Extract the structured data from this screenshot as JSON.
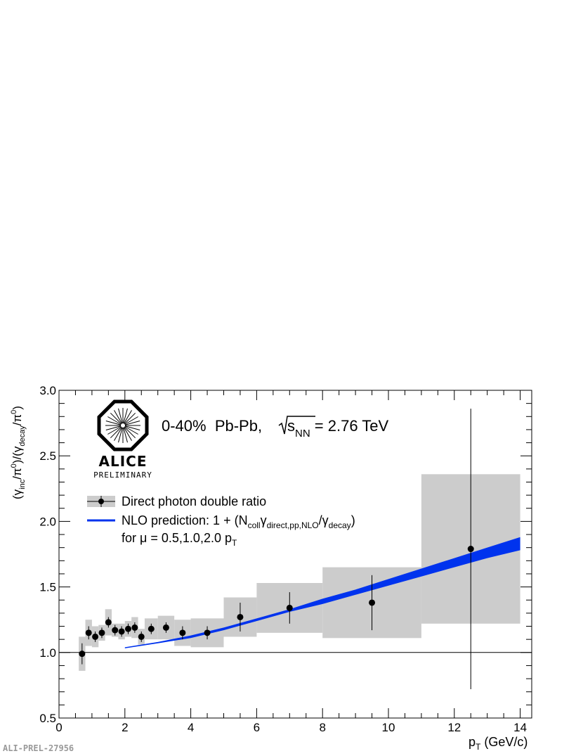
{
  "tag": "ALI-PREL-27956",
  "logo": {
    "text": "ALICE",
    "subtext": "PRELIMINARY"
  },
  "title": {
    "main": "0-40%  Pb-Pb, ",
    "s_sym": "s",
    "s_sub": "NN",
    "value": " = 2.76 TeV"
  },
  "legend": {
    "data_label": "Direct photon double ratio",
    "nlo_prefix": "NLO prediction: 1 + (N",
    "nlo_sub1": "coll",
    "nlo_gamma": "γ",
    "nlo_sub2": "direct,pp,NLO",
    "nlo_mid": "/γ",
    "nlo_sub3": "decay",
    "nlo_suffix": ")",
    "mu_text": "for μ = 0.5,1.0,2.0 p",
    "mu_sub": "T"
  },
  "axis": {
    "x_label_main": "p",
    "x_label_sub": "T",
    "x_label_rest": " (GeV/c)",
    "y_label": "(γinc/π0)/(γdecay/π0)"
  },
  "colors": {
    "band": "#0033ee",
    "sys": "#cccccc",
    "point": "#000000"
  },
  "chart_data": {
    "type": "scatter",
    "xlim": [
      0,
      14.35
    ],
    "ylim": [
      0.5,
      3.0
    ],
    "x_ticks": [
      0,
      2,
      4,
      6,
      8,
      10,
      12,
      14
    ],
    "y_ticks": [
      0.5,
      1.0,
      1.5,
      2.0,
      2.5,
      3.0
    ],
    "x_tick_labels": [
      "0",
      "2",
      "4",
      "6",
      "8",
      "10",
      "12",
      "14"
    ],
    "y_tick_labels": [
      "0.5",
      "1.0",
      "1.5",
      "2.0",
      "2.5",
      "3.0"
    ],
    "reference_line": 1.0,
    "series": [
      {
        "name": "Direct photon double ratio",
        "points": [
          {
            "x": 0.7,
            "y": 0.99,
            "err": 0.08,
            "sys": 0.13,
            "xlo": 0.6,
            "xhi": 0.8
          },
          {
            "x": 0.9,
            "y": 1.15,
            "err": 0.05,
            "sys": 0.1,
            "xlo": 0.8,
            "xhi": 1.0
          },
          {
            "x": 1.1,
            "y": 1.12,
            "err": 0.04,
            "sys": 0.08,
            "xlo": 1.0,
            "xhi": 1.2
          },
          {
            "x": 1.3,
            "y": 1.15,
            "err": 0.04,
            "sys": 0.06,
            "xlo": 1.2,
            "xhi": 1.4
          },
          {
            "x": 1.5,
            "y": 1.23,
            "err": 0.04,
            "sys": 0.1,
            "xlo": 1.4,
            "xhi": 1.6
          },
          {
            "x": 1.7,
            "y": 1.17,
            "err": 0.04,
            "sys": 0.05,
            "xlo": 1.6,
            "xhi": 1.8
          },
          {
            "x": 1.9,
            "y": 1.16,
            "err": 0.04,
            "sys": 0.06,
            "xlo": 1.8,
            "xhi": 2.0
          },
          {
            "x": 2.1,
            "y": 1.18,
            "err": 0.04,
            "sys": 0.06,
            "xlo": 2.0,
            "xhi": 2.2
          },
          {
            "x": 2.3,
            "y": 1.19,
            "err": 0.04,
            "sys": 0.08,
            "xlo": 2.2,
            "xhi": 2.4
          },
          {
            "x": 2.5,
            "y": 1.12,
            "err": 0.04,
            "sys": 0.06,
            "xlo": 2.4,
            "xhi": 2.6
          },
          {
            "x": 2.8,
            "y": 1.18,
            "err": 0.04,
            "sys": 0.08,
            "xlo": 2.6,
            "xhi": 3.0
          },
          {
            "x": 3.25,
            "y": 1.19,
            "err": 0.04,
            "sys": 0.09,
            "xlo": 3.0,
            "xhi": 3.5
          },
          {
            "x": 3.75,
            "y": 1.15,
            "err": 0.05,
            "sys": 0.1,
            "xlo": 3.5,
            "xhi": 4.0
          },
          {
            "x": 4.5,
            "y": 1.15,
            "err": 0.05,
            "sys": 0.11,
            "xlo": 4.0,
            "xhi": 5.0
          },
          {
            "x": 5.5,
            "y": 1.27,
            "err": 0.11,
            "sys": 0.15,
            "xlo": 5.0,
            "xhi": 6.0
          },
          {
            "x": 7.0,
            "y": 1.34,
            "err": 0.12,
            "sys": 0.19,
            "xlo": 6.0,
            "xhi": 8.0
          },
          {
            "x": 9.5,
            "y": 1.38,
            "err": 0.21,
            "sys": 0.27,
            "xlo": 8.0,
            "xhi": 11.0
          },
          {
            "x": 12.5,
            "y": 1.79,
            "err": 1.07,
            "sys": 0.57,
            "xlo": 11.0,
            "xhi": 14.0
          }
        ]
      },
      {
        "name": "NLO prediction: 1 + (Ncollγdirect,pp,NLO/γdecay)",
        "type": "band",
        "x": [
          2.0,
          3.0,
          4.0,
          5.0,
          6.0,
          7.0,
          8.0,
          9.0,
          10.0,
          11.0,
          12.0,
          13.0,
          14.0
        ],
        "lower": [
          1.04,
          1.07,
          1.11,
          1.17,
          1.24,
          1.31,
          1.37,
          1.44,
          1.51,
          1.58,
          1.65,
          1.72,
          1.78
        ],
        "upper": [
          1.04,
          1.08,
          1.13,
          1.19,
          1.26,
          1.33,
          1.41,
          1.48,
          1.56,
          1.64,
          1.72,
          1.8,
          1.88
        ]
      }
    ]
  }
}
